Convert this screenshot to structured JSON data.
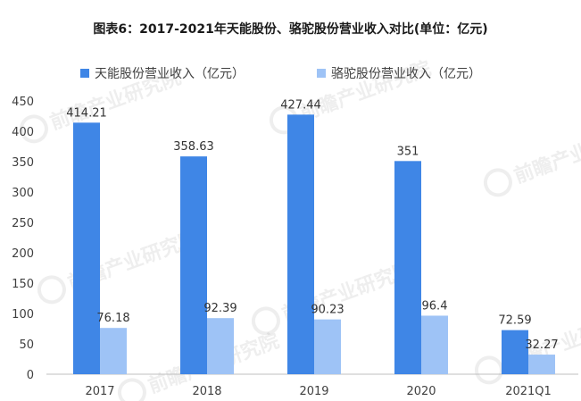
{
  "chart_data": {
    "type": "bar",
    "title": "图表6：2017-2021年天能股份、骆驼股份营业收入对比(单位：亿元)",
    "categories": [
      "2017",
      "2018",
      "2019",
      "2020",
      "2021Q1"
    ],
    "series": [
      {
        "name": "天能股份营业收入（亿元）",
        "color": "#3f86e6",
        "values": [
          414.21,
          358.63,
          427.44,
          351,
          72.59
        ],
        "labels": [
          "414.21",
          "358.63",
          "427.44",
          "351",
          "72.59"
        ]
      },
      {
        "name": "骆驼股份营业收入（亿元）",
        "color": "#9ec3f6",
        "values": [
          76.18,
          92.39,
          90.23,
          96.4,
          32.27
        ],
        "labels": [
          "76.18",
          "92.39",
          "90.23",
          "96.4",
          "32.27"
        ]
      }
    ],
    "ylim": [
      0,
      450
    ],
    "yticks": [
      0,
      50,
      100,
      150,
      200,
      250,
      300,
      350,
      400,
      450
    ],
    "ytick_labels": [
      "0",
      "50",
      "100",
      "150",
      "200",
      "250",
      "300",
      "350",
      "400",
      "450"
    ],
    "xlabel": "",
    "ylabel": "",
    "grid": false,
    "legend_position": "top"
  },
  "watermark_text": "前瞻产业研究院",
  "axis_color": "#bfbfbf"
}
